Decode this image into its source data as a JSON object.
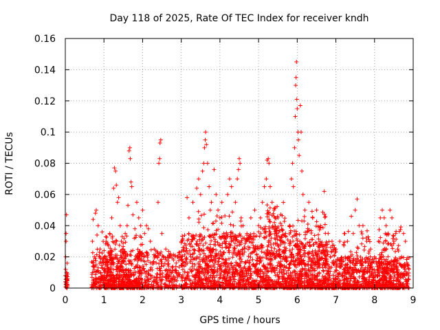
{
  "chart_data": {
    "type": "scatter",
    "title": "Day 118 of 2025, Rate Of TEC Index for receiver kndh",
    "xlabel": "GPS time / hours",
    "ylabel": "ROTI / TECUs",
    "xlim": [
      0,
      9
    ],
    "ylim": [
      0,
      0.16
    ],
    "xticks": [
      0,
      1,
      2,
      3,
      4,
      5,
      6,
      7,
      8,
      9
    ],
    "xtick_labels": [
      "0",
      "1",
      "2",
      "3",
      "4",
      "5",
      "6",
      "7",
      "8",
      "9"
    ],
    "yticks": [
      0,
      0.02,
      0.04,
      0.06,
      0.08,
      0.1,
      0.12,
      0.14,
      0.16
    ],
    "ytick_labels": [
      "0",
      "0.02",
      "0.04",
      "0.06",
      "0.08",
      "0.1",
      "0.12",
      "0.14",
      "0.16"
    ],
    "grid": true,
    "marker": "+",
    "color": "#ff0000",
    "series": [
      {
        "name": "ROTI",
        "points": [
          [
            0.0,
            0.004
          ],
          [
            0.0,
            0.008
          ],
          [
            0.01,
            0.012
          ],
          [
            0.01,
            0.02
          ],
          [
            0.02,
            0.03
          ],
          [
            0.02,
            0.035
          ],
          [
            0.03,
            0.047
          ],
          [
            0.03,
            0.006
          ],
          [
            0.04,
            0.01
          ],
          [
            0.05,
            0.016
          ],
          [
            0.05,
            0.002
          ],
          [
            0.7,
            0.01
          ],
          [
            0.7,
            0.03
          ],
          [
            0.72,
            0.044
          ],
          [
            0.75,
            0.02
          ],
          [
            0.78,
            0.048
          ],
          [
            0.8,
            0.05
          ],
          [
            0.82,
            0.034
          ],
          [
            0.85,
            0.04
          ],
          [
            0.9,
            0.025
          ],
          [
            0.95,
            0.036
          ],
          [
            0.98,
            0.03
          ],
          [
            1.05,
            0.02
          ],
          [
            1.1,
            0.028
          ],
          [
            1.15,
            0.035
          ],
          [
            1.2,
            0.045
          ],
          [
            1.25,
            0.064
          ],
          [
            1.27,
            0.077
          ],
          [
            1.3,
            0.075
          ],
          [
            1.32,
            0.066
          ],
          [
            1.35,
            0.055
          ],
          [
            1.38,
            0.058
          ],
          [
            1.42,
            0.04
          ],
          [
            1.45,
            0.03
          ],
          [
            1.5,
            0.025
          ],
          [
            1.55,
            0.035
          ],
          [
            1.6,
            0.04
          ],
          [
            1.62,
            0.053
          ],
          [
            1.65,
            0.088
          ],
          [
            1.67,
            0.09
          ],
          [
            1.68,
            0.083
          ],
          [
            1.7,
            0.068
          ],
          [
            1.72,
            0.065
          ],
          [
            1.75,
            0.047
          ],
          [
            1.8,
            0.038
          ],
          [
            1.85,
            0.055
          ],
          [
            1.9,
            0.045
          ],
          [
            1.95,
            0.04
          ],
          [
            2.0,
            0.05
          ],
          [
            2.05,
            0.035
          ],
          [
            2.1,
            0.04
          ],
          [
            2.15,
            0.038
          ],
          [
            2.2,
            0.03
          ],
          [
            2.3,
            0.025
          ],
          [
            2.38,
            0.02
          ],
          [
            2.4,
            0.055
          ],
          [
            2.42,
            0.08
          ],
          [
            2.44,
            0.083
          ],
          [
            2.45,
            0.093
          ],
          [
            2.47,
            0.095
          ],
          [
            2.5,
            0.035
          ],
          [
            2.55,
            0.02
          ],
          [
            2.6,
            0.025
          ],
          [
            2.7,
            0.02
          ],
          [
            2.8,
            0.018
          ],
          [
            2.9,
            0.02
          ],
          [
            3.15,
            0.058
          ],
          [
            3.2,
            0.045
          ],
          [
            3.3,
            0.055
          ],
          [
            3.4,
            0.064
          ],
          [
            3.45,
            0.07
          ],
          [
            3.5,
            0.06
          ],
          [
            3.55,
            0.075
          ],
          [
            3.58,
            0.08
          ],
          [
            3.6,
            0.09
          ],
          [
            3.62,
            0.095
          ],
          [
            3.63,
            0.1
          ],
          [
            3.65,
            0.092
          ],
          [
            3.68,
            0.08
          ],
          [
            3.72,
            0.065
          ],
          [
            3.75,
            0.05
          ],
          [
            3.78,
            0.055
          ],
          [
            3.85,
            0.076
          ],
          [
            3.9,
            0.06
          ],
          [
            3.95,
            0.05
          ],
          [
            4.0,
            0.045
          ],
          [
            4.05,
            0.055
          ],
          [
            4.1,
            0.035
          ],
          [
            4.2,
            0.06
          ],
          [
            4.25,
            0.07
          ],
          [
            4.3,
            0.065
          ],
          [
            4.35,
            0.04
          ],
          [
            4.4,
            0.055
          ],
          [
            4.45,
            0.07
          ],
          [
            4.48,
            0.076
          ],
          [
            4.5,
            0.083
          ],
          [
            4.52,
            0.08
          ],
          [
            4.55,
            0.045
          ],
          [
            4.6,
            0.04
          ],
          [
            4.7,
            0.035
          ],
          [
            4.8,
            0.045
          ],
          [
            4.9,
            0.05
          ],
          [
            5.0,
            0.04
          ],
          [
            5.05,
            0.045
          ],
          [
            5.1,
            0.055
          ],
          [
            5.15,
            0.065
          ],
          [
            5.2,
            0.07
          ],
          [
            5.22,
            0.082
          ],
          [
            5.25,
            0.083
          ],
          [
            5.27,
            0.08
          ],
          [
            5.3,
            0.065
          ],
          [
            5.35,
            0.055
          ],
          [
            5.4,
            0.05
          ],
          [
            5.5,
            0.045
          ],
          [
            5.6,
            0.04
          ],
          [
            5.7,
            0.035
          ],
          [
            5.8,
            0.04
          ],
          [
            5.85,
            0.07
          ],
          [
            5.88,
            0.08
          ],
          [
            5.9,
            0.065
          ],
          [
            5.93,
            0.09
          ],
          [
            5.95,
            0.11
          ],
          [
            5.96,
            0.13
          ],
          [
            5.97,
            0.135
          ],
          [
            5.98,
            0.145
          ],
          [
            5.99,
            0.121
          ],
          [
            6.0,
            0.115
          ],
          [
            6.02,
            0.1
          ],
          [
            6.03,
            0.095
          ],
          [
            6.05,
            0.085
          ],
          [
            6.08,
            0.117
          ],
          [
            6.1,
            0.1
          ],
          [
            6.12,
            0.075
          ],
          [
            6.15,
            0.06
          ],
          [
            6.2,
            0.05
          ],
          [
            6.3,
            0.055
          ],
          [
            6.4,
            0.045
          ],
          [
            6.5,
            0.05
          ],
          [
            6.6,
            0.04
          ],
          [
            6.7,
            0.062
          ],
          [
            6.8,
            0.035
          ],
          [
            6.9,
            0.03
          ],
          [
            7.0,
            0.025
          ],
          [
            7.1,
            0.03
          ],
          [
            7.2,
            0.028
          ],
          [
            7.3,
            0.03
          ],
          [
            7.4,
            0.046
          ],
          [
            7.45,
            0.035
          ],
          [
            7.5,
            0.05
          ],
          [
            7.55,
            0.057
          ],
          [
            7.6,
            0.04
          ],
          [
            7.7,
            0.04
          ],
          [
            7.8,
            0.03
          ],
          [
            7.9,
            0.025
          ],
          [
            8.0,
            0.02
          ],
          [
            8.1,
            0.03
          ],
          [
            8.15,
            0.045
          ],
          [
            8.2,
            0.05
          ],
          [
            8.25,
            0.045
          ],
          [
            8.3,
            0.04
          ],
          [
            8.35,
            0.035
          ],
          [
            8.4,
            0.05
          ],
          [
            8.45,
            0.045
          ],
          [
            8.5,
            0.03
          ],
          [
            8.55,
            0.035
          ],
          [
            8.6,
            0.025
          ],
          [
            8.7,
            0.02
          ],
          [
            8.75,
            0.035
          ],
          [
            8.8,
            0.03
          ],
          [
            8.85,
            0.015
          ]
        ],
        "bands": [
          [
            0.0,
            0.06,
            0.0,
            0.01,
            24
          ],
          [
            0.68,
            1.5,
            0.0,
            0.025,
            320
          ],
          [
            1.0,
            2.0,
            0.0,
            0.035,
            220
          ],
          [
            1.5,
            3.0,
            0.0,
            0.025,
            380
          ],
          [
            3.0,
            4.0,
            0.0,
            0.035,
            420
          ],
          [
            3.4,
            4.6,
            0.01,
            0.05,
            120
          ],
          [
            4.0,
            5.0,
            0.0,
            0.035,
            420
          ],
          [
            5.0,
            6.0,
            0.0,
            0.04,
            460
          ],
          [
            5.2,
            5.7,
            0.02,
            0.055,
            80
          ],
          [
            6.0,
            7.0,
            0.0,
            0.03,
            420
          ],
          [
            6.0,
            6.8,
            0.015,
            0.05,
            110
          ],
          [
            7.0,
            8.0,
            0.0,
            0.02,
            380
          ],
          [
            7.2,
            7.9,
            0.01,
            0.04,
            60
          ],
          [
            8.0,
            8.9,
            0.0,
            0.02,
            340
          ],
          [
            8.1,
            8.7,
            0.01,
            0.04,
            90
          ]
        ]
      }
    ]
  }
}
